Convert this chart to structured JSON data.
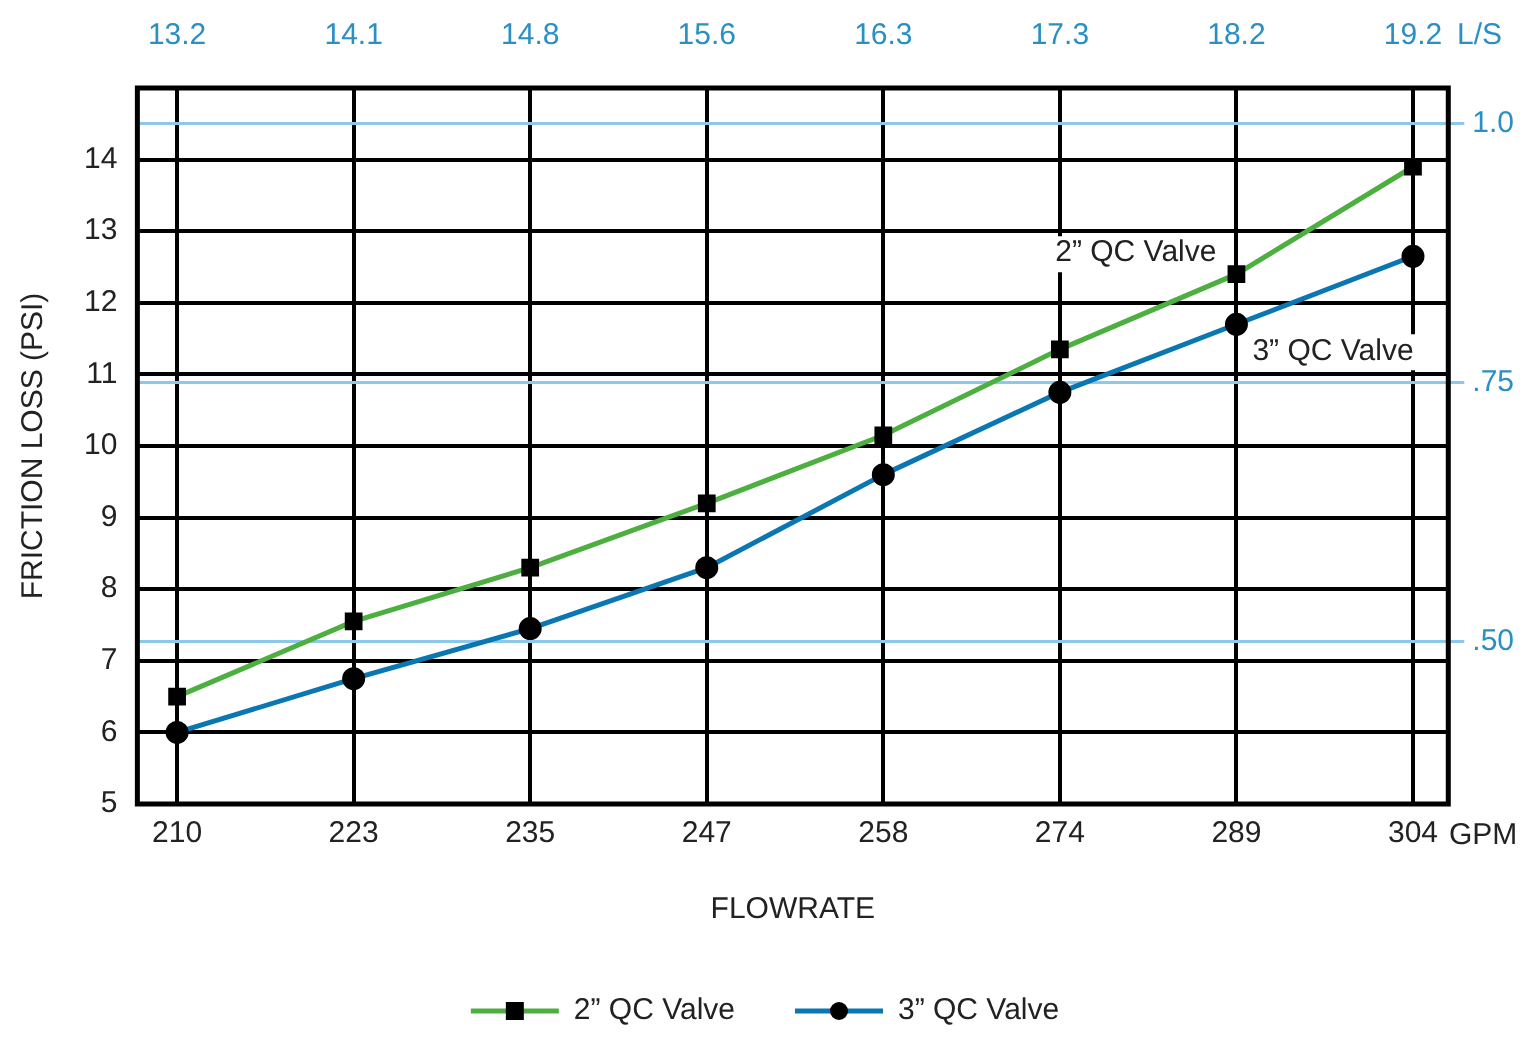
{
  "chart_data": {
    "type": "line",
    "xlabel": "FLOWRATE",
    "ylabel": "FRICTION LOSS (PSI)",
    "categories": [
      "210",
      "223",
      "235",
      "247",
      "258",
      "274",
      "289",
      "304"
    ],
    "series": [
      {
        "name": "2” QC Valve",
        "color": "#4caf3f",
        "marker": "square",
        "values": [
          6.5,
          7.55,
          8.3,
          9.2,
          10.15,
          11.35,
          12.4,
          13.9
        ]
      },
      {
        "name": "3” QC Valve",
        "color": "#0a77b3",
        "marker": "circle",
        "values": [
          6.0,
          6.75,
          7.45,
          8.3,
          9.6,
          10.75,
          11.7,
          12.65
        ]
      }
    ],
    "ylim": [
      5,
      15
    ],
    "yticks": [
      5,
      6,
      7,
      8,
      9,
      10,
      11,
      12,
      13,
      14
    ],
    "y2lim": [
      0.343,
      1.034
    ],
    "y2ticks": [
      {
        "value": 0.5,
        "label": ".50"
      },
      {
        "value": 0.75,
        "label": ".75"
      },
      {
        "value": 1.0,
        "label": "1.0"
      }
    ],
    "annotations": [
      "GPM",
      "L/S",
      "13.2",
      "14.1",
      "14.8",
      "15.6",
      "16.3",
      "17.3",
      "18.2",
      "19.2",
      {
        "text": "2” QC Valve",
        "x": "289",
        "y": 12.4
      },
      {
        "text": "3” QC Valve",
        "x": "289",
        "y": 11.7
      }
    ],
    "grid": true,
    "legend": "bottom"
  }
}
